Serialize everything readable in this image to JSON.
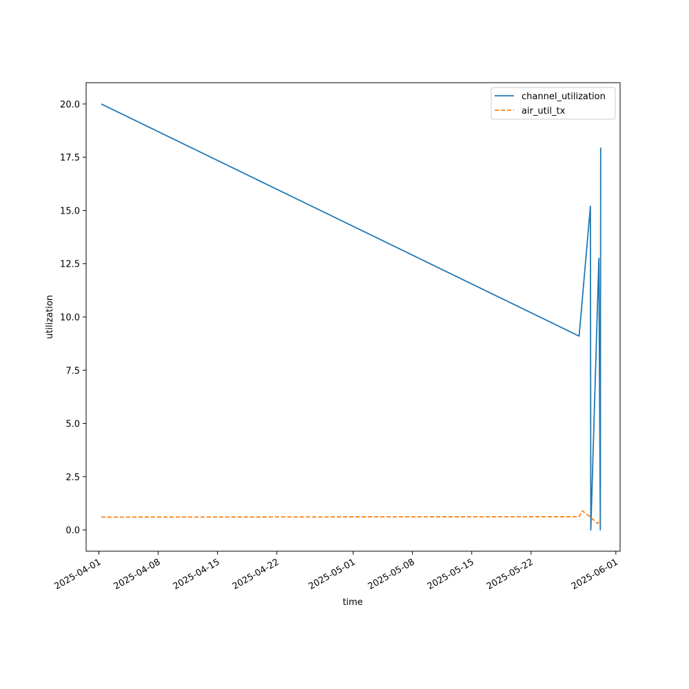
{
  "chart_data": {
    "type": "line",
    "title": "",
    "xlabel": "time",
    "ylabel": "utilization",
    "xlim": [
      "2025-03-30 12:00",
      "2025-06-01 12:00"
    ],
    "ylim": [
      -1,
      21
    ],
    "grid": false,
    "legend_position": "top-right",
    "x_ticks": [
      "2025-04-01",
      "2025-04-08",
      "2025-04-15",
      "2025-04-22",
      "2025-05-01",
      "2025-05-08",
      "2025-05-15",
      "2025-05-22",
      "2025-06-01"
    ],
    "y_ticks": [
      "0.0",
      "2.5",
      "5.0",
      "7.5",
      "10.0",
      "12.5",
      "15.0",
      "17.5",
      "20.0"
    ],
    "series": [
      {
        "name": "channel_utilization",
        "color": "#1f77b4",
        "dash": "solid",
        "points": [
          {
            "x": "2025-04-01 07:00",
            "y": 20.0
          },
          {
            "x": "2025-05-27 16:00",
            "y": 9.1
          },
          {
            "x": "2025-05-29 00:00",
            "y": 15.2
          },
          {
            "x": "2025-05-29 01:00",
            "y": 0.0
          },
          {
            "x": "2025-05-30 00:00",
            "y": 12.75
          },
          {
            "x": "2025-05-30 04:00",
            "y": 0.0
          },
          {
            "x": "2025-05-30 05:00",
            "y": 17.95
          }
        ]
      },
      {
        "name": "air_util_tx",
        "color": "#ff7f0e",
        "dash": "dashed",
        "points": [
          {
            "x": "2025-04-01 07:00",
            "y": 0.6
          },
          {
            "x": "2025-05-27 16:00",
            "y": 0.62
          },
          {
            "x": "2025-05-28 01:00",
            "y": 0.9
          },
          {
            "x": "2025-05-29 00:00",
            "y": 0.6
          },
          {
            "x": "2025-05-29 20:00",
            "y": 0.3
          },
          {
            "x": "2025-05-30 05:00",
            "y": 0.45
          }
        ]
      }
    ]
  }
}
